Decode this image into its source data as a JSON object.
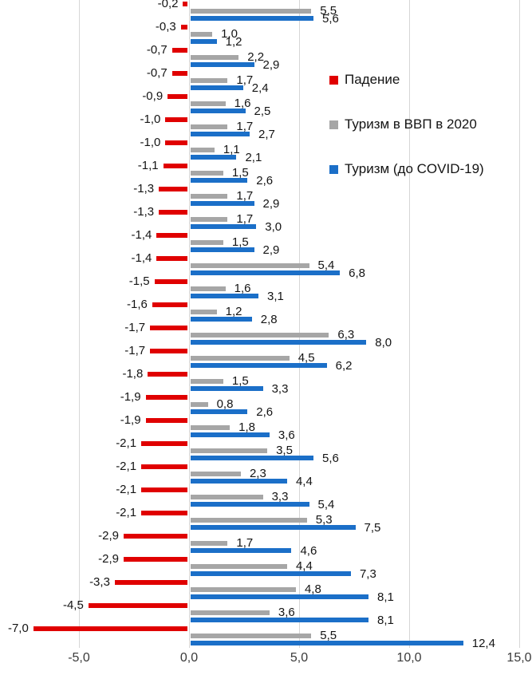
{
  "chart_data": {
    "type": "bar",
    "orientation": "horizontal",
    "title": "",
    "xlabel": "",
    "ylabel": "",
    "xlim": [
      -8.6,
      15.6
    ],
    "grid": true,
    "legend_position": "right-top",
    "decimal_separator": ",",
    "rows": 28,
    "series": [
      {
        "name": "Падение",
        "key": "fall",
        "color": "#e00000",
        "values": [
          -0.2,
          -0.3,
          -0.7,
          -0.7,
          -0.9,
          -1.0,
          -1.0,
          -1.1,
          -1.3,
          -1.3,
          -1.4,
          -1.4,
          -1.5,
          -1.6,
          -1.7,
          -1.7,
          -1.8,
          -1.9,
          -1.9,
          -2.1,
          -2.1,
          -2.1,
          -2.1,
          -2.9,
          -2.9,
          -3.3,
          -4.5,
          -7.0
        ],
        "labels": [
          "-0,2",
          "-0,3",
          "-0,7",
          "-0,7",
          "-0,9",
          "-1,0",
          "-1,0",
          "-1,1",
          "-1,3",
          "-1,3",
          "-1,4",
          "-1,4",
          "-1,5",
          "-1,6",
          "-1,7",
          "-1,7",
          "-1,8",
          "-1,9",
          "-1,9",
          "-2,1",
          "-2,1",
          "-2,1",
          "-2,1",
          "-2,9",
          "-2,9",
          "-3,3",
          "-4,5",
          "-7,0"
        ]
      },
      {
        "name": "Туризм в ВВП в 2020",
        "key": "tourism-gdp-2020",
        "color": "#a6a6a6",
        "values": [
          5.5,
          1.0,
          2.2,
          1.7,
          1.6,
          1.7,
          1.1,
          1.5,
          1.7,
          1.7,
          1.5,
          5.4,
          1.6,
          1.2,
          6.3,
          4.5,
          1.5,
          0.8,
          1.8,
          3.5,
          2.3,
          3.3,
          5.3,
          1.7,
          4.4,
          4.8,
          3.6,
          5.5
        ],
        "labels": [
          "5,5",
          "1,0",
          "2,2",
          "1,7",
          "1,6",
          "1,7",
          "1,1",
          "1,5",
          "1,7",
          "1,7",
          "1,5",
          "5,4",
          "1,6",
          "1,2",
          "6,3",
          "4,5",
          "1,5",
          "0,8",
          "1,8",
          "3,5",
          "2,3",
          "3,3",
          "5,3",
          "1,7",
          "4,4",
          "4,8",
          "3,6",
          "5,5"
        ]
      },
      {
        "name": "Туризм (до COVID-19)",
        "key": "tourism-pre-covid",
        "color": "#1b6fc8",
        "values": [
          5.6,
          1.2,
          2.9,
          2.4,
          2.5,
          2.7,
          2.1,
          2.6,
          2.9,
          3.0,
          2.9,
          6.8,
          3.1,
          2.8,
          8.0,
          6.2,
          3.3,
          2.6,
          3.6,
          5.6,
          4.4,
          5.4,
          7.5,
          4.6,
          7.3,
          8.1,
          8.1,
          12.4
        ],
        "labels": [
          "5,6",
          "1,2",
          "2,9",
          "2,4",
          "2,5",
          "2,7",
          "2,1",
          "2,6",
          "2,9",
          "3,0",
          "2,9",
          "6,8",
          "3,1",
          "2,8",
          "8,0",
          "6,2",
          "3,3",
          "2,6",
          "3,6",
          "5,6",
          "4,4",
          "5,4",
          "7,5",
          "4,6",
          "7,3",
          "8,1",
          "8,1",
          "12,4"
        ]
      }
    ],
    "x_axis": {
      "tick_values": [
        -5,
        0,
        5,
        10,
        15
      ],
      "tick_labels": [
        "-5,0",
        "0,0",
        "5,0",
        "10,0",
        "15,0"
      ]
    }
  }
}
